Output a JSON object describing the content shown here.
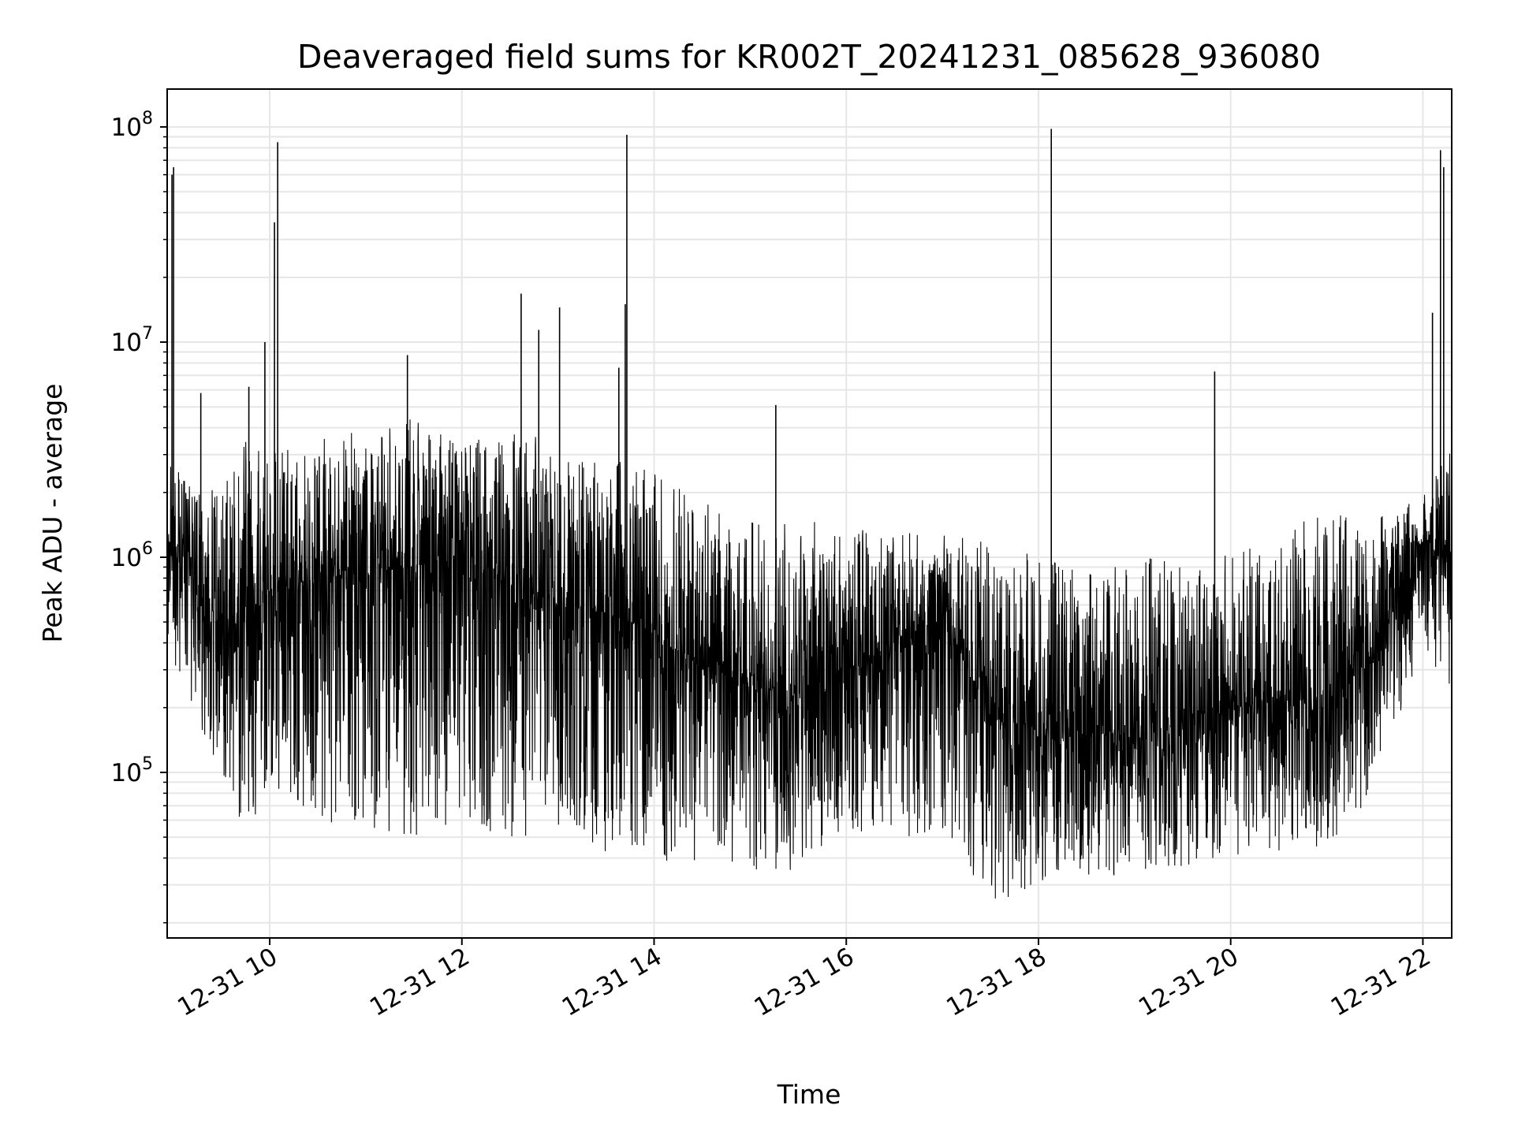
{
  "chart_data": {
    "type": "line",
    "title": "Deaveraged field sums for KR002T_20241231_085628_936080",
    "xlabel": "Time",
    "ylabel": "Peak ADU - average",
    "yscale": "log",
    "grid": true,
    "legend": "none",
    "xlim": [
      "2024-12-31 08:56",
      "2024-12-31 22:18"
    ],
    "ylim": [
      17000,
      150000000
    ],
    "x_ticks": [
      {
        "value": "2024-12-31 10:00",
        "label": "12-31 10"
      },
      {
        "value": "2024-12-31 12:00",
        "label": "12-31 12"
      },
      {
        "value": "2024-12-31 14:00",
        "label": "12-31 14"
      },
      {
        "value": "2024-12-31 16:00",
        "label": "12-31 16"
      },
      {
        "value": "2024-12-31 18:00",
        "label": "12-31 18"
      },
      {
        "value": "2024-12-31 20:00",
        "label": "12-31 20"
      },
      {
        "value": "2024-12-31 22:00",
        "label": "12-31 22"
      }
    ],
    "y_ticks": [
      {
        "value": 100000,
        "base": "10",
        "exp": "5"
      },
      {
        "value": 1000000,
        "base": "10",
        "exp": "6"
      },
      {
        "value": 10000000,
        "base": "10",
        "exp": "7"
      },
      {
        "value": 100000000,
        "base": "10",
        "exp": "8"
      }
    ],
    "line_color": "#000000",
    "grid_color": "#e6e6e6",
    "series": [
      {
        "x": [
          "2024-12-31 08:56",
          "2024-12-31 09:10",
          "2024-12-31 09:30",
          "2024-12-31 09:45",
          "2024-12-31 10:00",
          "2024-12-31 10:30",
          "2024-12-31 11:00",
          "2024-12-31 11:30",
          "2024-12-31 12:00",
          "2024-12-31 12:30",
          "2024-12-31 13:00",
          "2024-12-31 13:30",
          "2024-12-31 14:00",
          "2024-12-31 14:30",
          "2024-12-31 15:00",
          "2024-12-31 15:30",
          "2024-12-31 16:00",
          "2024-12-31 16:30",
          "2024-12-31 17:00",
          "2024-12-31 17:30",
          "2024-12-31 18:00",
          "2024-12-31 18:30",
          "2024-12-31 19:00",
          "2024-12-31 19:30",
          "2024-12-31 20:00",
          "2024-12-31 20:30",
          "2024-12-31 21:00",
          "2024-12-31 21:30",
          "2024-12-31 22:00",
          "2024-12-31 22:18"
        ],
        "median": [
          1200000,
          1000000,
          450000,
          500000,
          700000,
          800000,
          850000,
          900000,
          1000000,
          750000,
          600000,
          550000,
          450000,
          300000,
          250000,
          230000,
          300000,
          400000,
          550000,
          180000,
          160000,
          150000,
          150000,
          160000,
          200000,
          210000,
          220000,
          350000,
          1200000,
          900000
        ],
        "min": [
          300000,
          200000,
          100000,
          45000,
          90000,
          60000,
          55000,
          50000,
          60000,
          40000,
          55000,
          40000,
          38000,
          38000,
          35000,
          33000,
          45000,
          48000,
          55000,
          24000,
          30000,
          32000,
          33000,
          36000,
          40000,
          42000,
          45000,
          80000,
          400000,
          200000
        ],
        "max": [
          3000000,
          2200000,
          2000000,
          3500000,
          3000000,
          3500000,
          4000000,
          4500000,
          3500000,
          4500000,
          3000000,
          3000000,
          2500000,
          2000000,
          1500000,
          1500000,
          1400000,
          1300000,
          1300000,
          1200000,
          1000000,
          900000,
          1000000,
          1000000,
          1100000,
          1300000,
          1700000,
          1500000,
          2000000,
          3500000
        ],
        "spikes": [
          {
            "x": "2024-12-31 08:59",
            "y": 60000000
          },
          {
            "x": "2024-12-31 09:00",
            "y": 65000000
          },
          {
            "x": "2024-12-31 09:17",
            "y": 5800000
          },
          {
            "x": "2024-12-31 09:47",
            "y": 6200000
          },
          {
            "x": "2024-12-31 09:57",
            "y": 10000000
          },
          {
            "x": "2024-12-31 10:03",
            "y": 36000000
          },
          {
            "x": "2024-12-31 10:05",
            "y": 85000000
          },
          {
            "x": "2024-12-31 11:26",
            "y": 8700000
          },
          {
            "x": "2024-12-31 12:37",
            "y": 16800000
          },
          {
            "x": "2024-12-31 12:48",
            "y": 11400000
          },
          {
            "x": "2024-12-31 13:01",
            "y": 14500000
          },
          {
            "x": "2024-12-31 13:38",
            "y": 7600000
          },
          {
            "x": "2024-12-31 13:42",
            "y": 15000000
          },
          {
            "x": "2024-12-31 13:43",
            "y": 92000000
          },
          {
            "x": "2024-12-31 15:16",
            "y": 5100000
          },
          {
            "x": "2024-12-31 18:08",
            "y": 98000000
          },
          {
            "x": "2024-12-31 19:50",
            "y": 7300000
          },
          {
            "x": "2024-12-31 22:06",
            "y": 13700000
          },
          {
            "x": "2024-12-31 22:11",
            "y": 78000000
          },
          {
            "x": "2024-12-31 22:13",
            "y": 65000000
          }
        ]
      }
    ]
  }
}
